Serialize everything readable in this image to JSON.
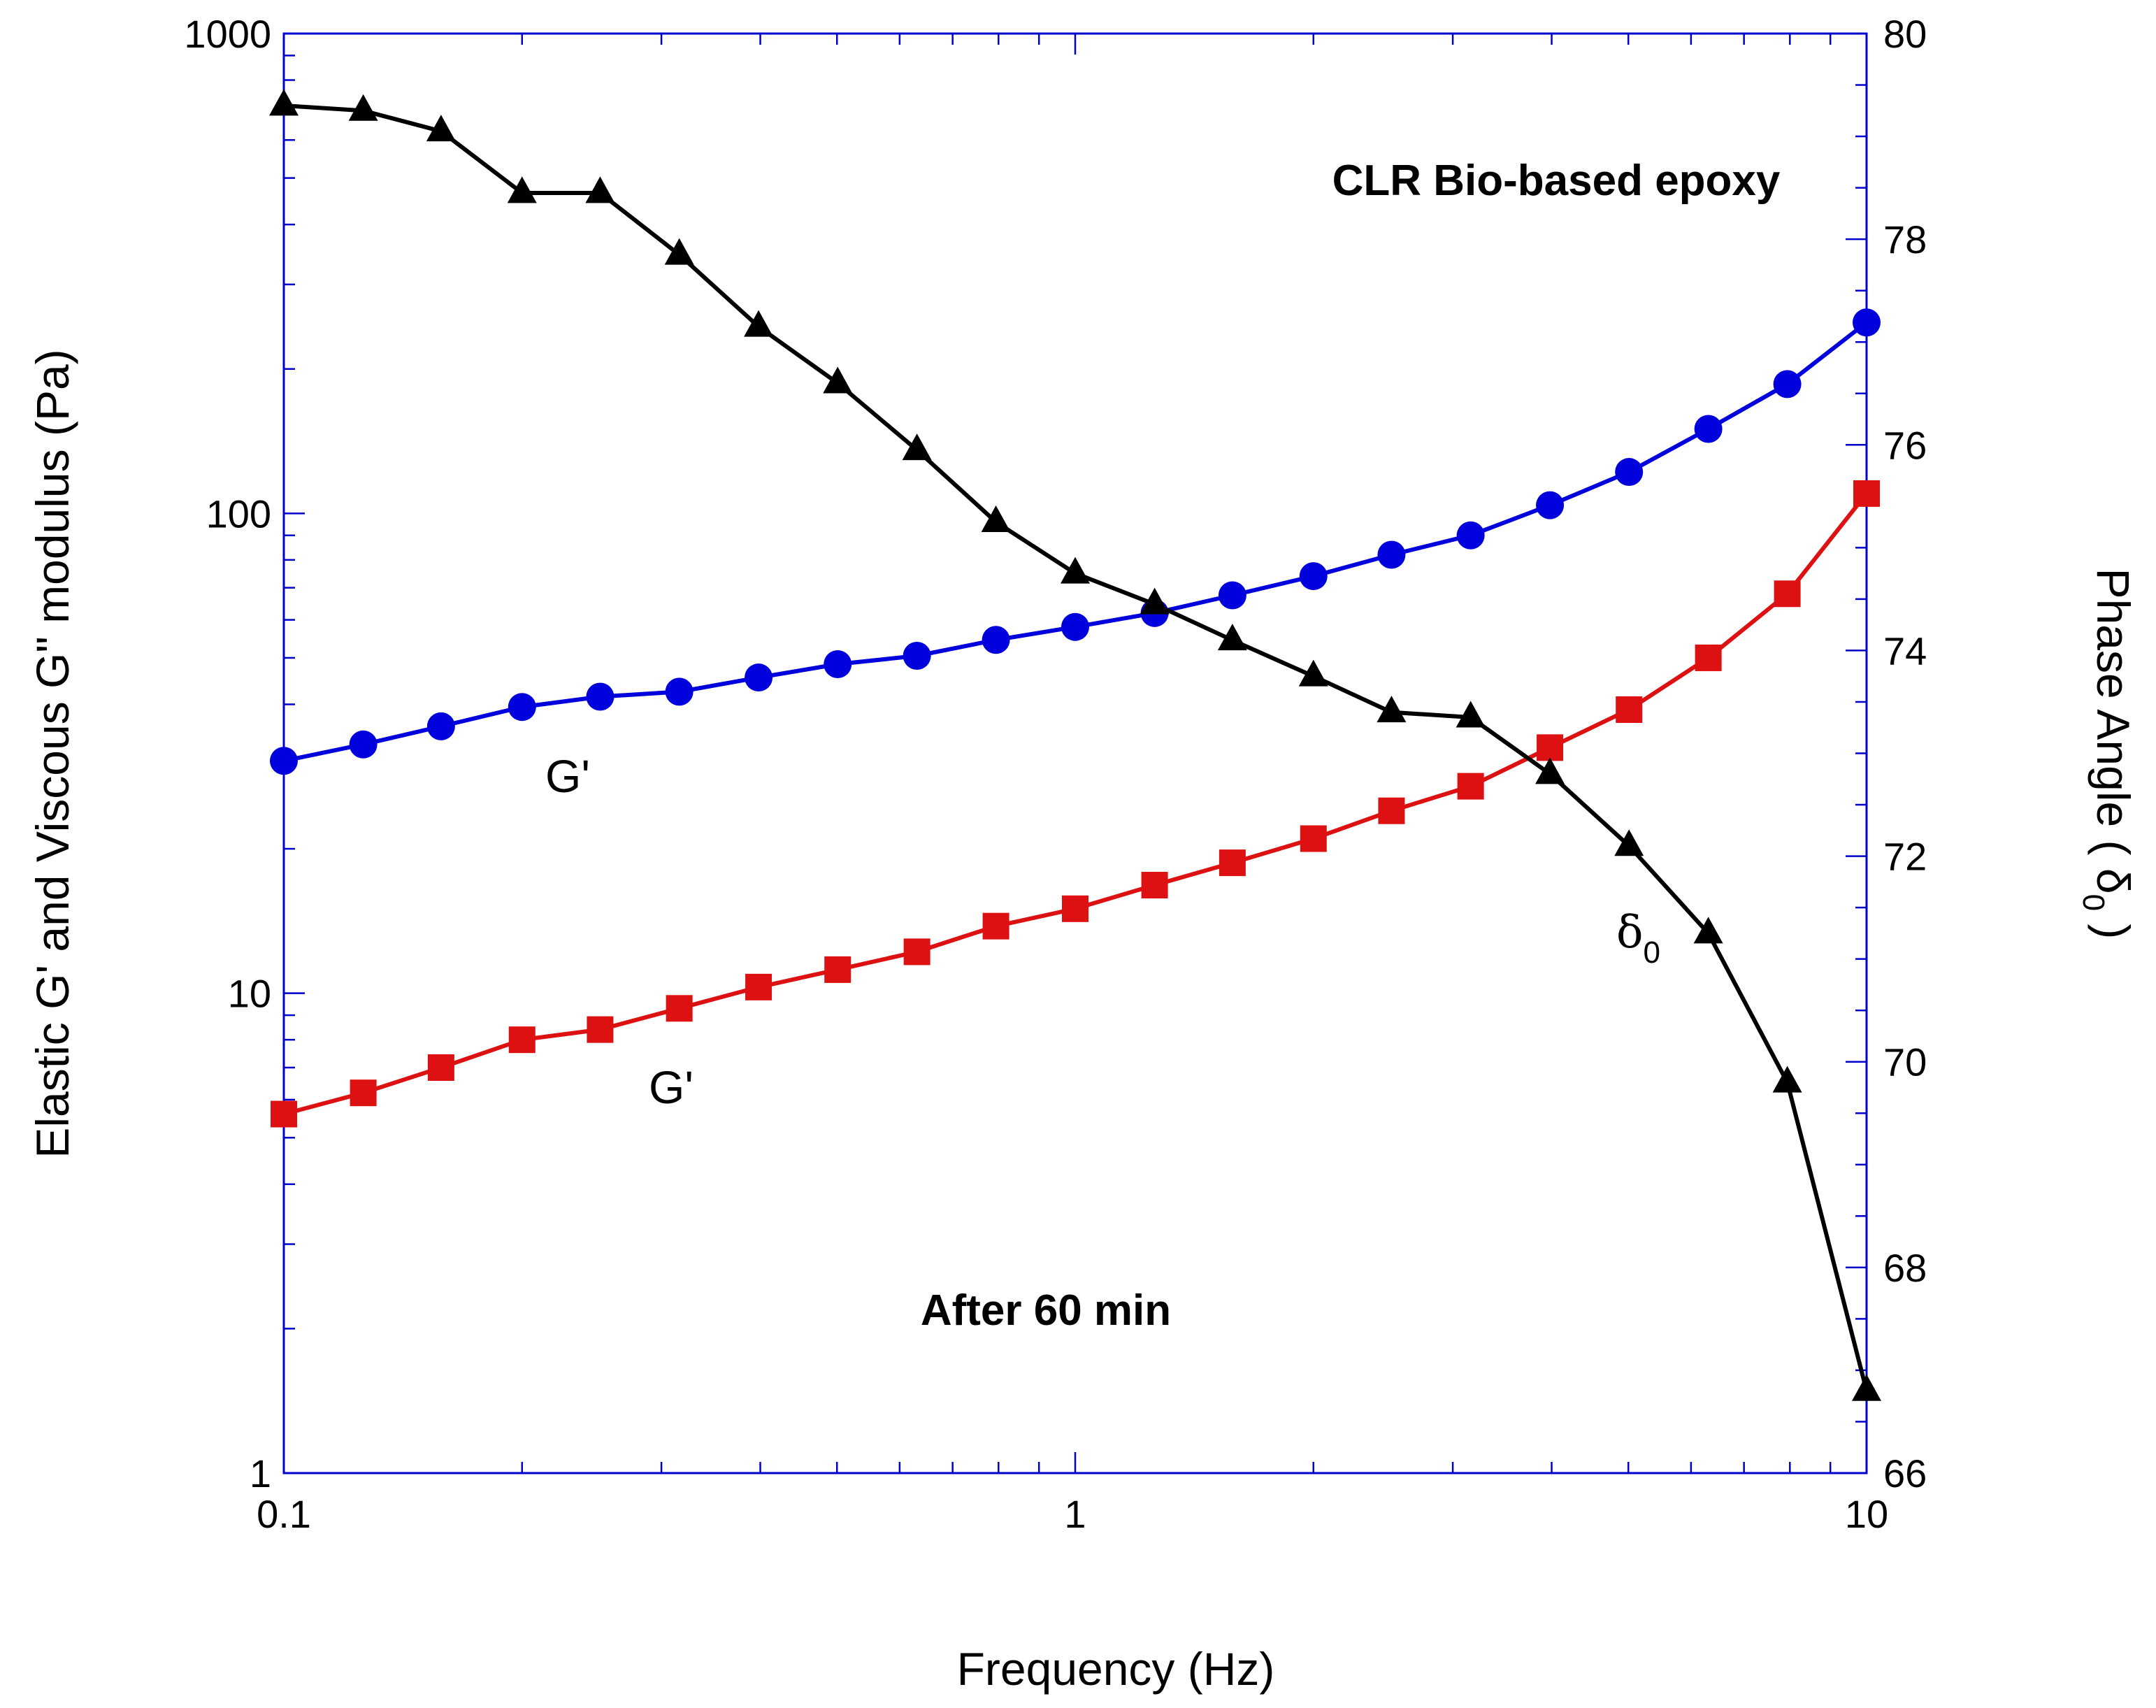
{
  "chart_data": {
    "type": "line",
    "title": "",
    "annotations": {
      "material": "CLR Bio-based epoxy",
      "time": "After 60 min",
      "series_label_upper": "G'",
      "series_label_lower": "G'",
      "delta_symbol": "δ",
      "delta_subscript": "0"
    },
    "xlabel": "Frequency  (Hz)",
    "ylabel_left": "Elastic G' and Viscous G\" modulus (Pa)",
    "ylabel_right_prefix": "Phase Angle ( δ",
    "ylabel_right_sub": "0",
    "ylabel_right_suffix": " )",
    "x_scale": "log",
    "y_left_scale": "log",
    "xlim": [
      0.1,
      10
    ],
    "ylim_left": [
      1,
      1000
    ],
    "ylim_right": [
      66,
      80
    ],
    "x_ticks": [
      0.1,
      1,
      10
    ],
    "x_tick_labels": [
      "0.1",
      "1",
      "10"
    ],
    "y_left_ticks": [
      1,
      10,
      100,
      1000
    ],
    "y_left_tick_labels": [
      "1",
      "10",
      "100",
      "1000"
    ],
    "y_right_ticks": [
      66,
      68,
      70,
      72,
      74,
      76,
      78,
      80
    ],
    "y_right_tick_labels": [
      "66",
      "68",
      "70",
      "72",
      "74",
      "76",
      "78",
      "80"
    ],
    "x": [
      0.1,
      0.126,
      0.158,
      0.2,
      0.251,
      0.316,
      0.398,
      0.501,
      0.631,
      0.794,
      1.0,
      1.26,
      1.58,
      2.0,
      2.51,
      3.16,
      3.98,
      5.01,
      6.31,
      7.94,
      10.0
    ],
    "series": [
      {
        "name": "G' (upper, blue)",
        "axis": "left",
        "color": "#0000dd",
        "marker": "circle",
        "values": [
          30.5,
          33,
          36,
          39.5,
          41.5,
          42.5,
          45.5,
          48.5,
          50.5,
          54.5,
          58,
          62,
          67.5,
          74,
          82,
          90,
          104,
          122,
          150,
          186,
          250
        ]
      },
      {
        "name": "G' (lower, red)",
        "axis": "left",
        "color": "#dd1111",
        "marker": "square",
        "values": [
          5.6,
          6.2,
          7.0,
          8.0,
          8.4,
          9.3,
          10.3,
          11.2,
          12.2,
          13.8,
          15.0,
          16.8,
          18.7,
          21.0,
          24.0,
          27.0,
          32.5,
          39.0,
          50.0,
          68.0,
          110.0
        ]
      },
      {
        "name": "δ0 (phase angle)",
        "axis": "right",
        "color": "#000000",
        "marker": "triangle",
        "values": [
          79.3,
          79.25,
          79.05,
          78.45,
          78.45,
          77.85,
          77.15,
          76.6,
          75.95,
          75.25,
          74.75,
          74.45,
          74.1,
          73.75,
          73.4,
          73.35,
          72.8,
          72.1,
          71.25,
          69.8,
          66.8
        ]
      }
    ]
  }
}
